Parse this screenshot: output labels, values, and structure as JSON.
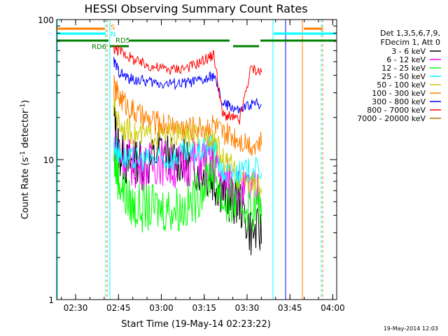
{
  "figure": {
    "title": "HESSI Observing Summary Count Rates",
    "xlabel": "Start Time (19-May-14 02:23:22)",
    "ylabel_main": "Count Rate (s",
    "ylabel_sup1": "-1",
    "ylabel_mid": " detector",
    "ylabel_sup2": "-1",
    "ylabel_end": ")",
    "timestamp": "19-May-2014 12:03"
  },
  "legend": {
    "header1": "Det 1,3,5,6,7,9,",
    "header2": "FDecim 1, Att 0"
  },
  "flags": {
    "S": "S",
    "N": "N",
    "RD6": "RD6",
    "RD5": "RD5"
  },
  "chart_data": {
    "type": "line",
    "title": "HESSI Observing Summary Count Rates",
    "xlabel": "Start Time (19-May-14 02:23:22)",
    "ylabel": "Count Rate (s^-1 detector^-1)",
    "yscale": "log",
    "xlim_minutes": [
      0,
      98
    ],
    "ylim": [
      1,
      100
    ],
    "x_ticks": [
      "02:30",
      "02:45",
      "03:00",
      "03:15",
      "03:30",
      "03:45",
      "04:00"
    ],
    "y_ticks": [
      "1",
      "10",
      "100"
    ],
    "x_minutes": [
      20,
      22,
      25,
      28,
      32,
      36,
      40,
      44,
      48,
      52,
      55,
      58,
      61,
      64,
      68,
      72
    ],
    "series": [
      {
        "name": "3 - 6 keV",
        "color": "#000000",
        "values": [
          20,
          11,
          9,
          10,
          9,
          12,
          10,
          10,
          9,
          8,
          7,
          6,
          5,
          5,
          3,
          3
        ]
      },
      {
        "name": "6 - 12 keV",
        "color": "#ff00ff",
        "values": [
          12,
          11,
          10,
          9,
          9,
          10,
          9,
          9,
          10,
          10,
          10,
          7,
          7,
          6,
          6,
          5.5
        ]
      },
      {
        "name": "12 - 25 keV",
        "color": "#00ff00",
        "values": [
          10,
          7,
          5,
          4.5,
          4.5,
          4.5,
          4.5,
          4.5,
          5,
          7,
          9,
          5,
          5,
          5,
          4.5,
          4.5
        ]
      },
      {
        "name": "25 - 50 keV",
        "color": "#00ffff",
        "values": [
          13,
          11,
          10,
          10,
          10,
          10,
          10,
          11,
          11,
          12,
          13,
          8,
          8,
          8,
          8.5,
          8.5
        ]
      },
      {
        "name": "50 - 100 keV",
        "color": "#cccc00",
        "values": [
          24,
          18,
          16,
          15,
          15,
          15,
          15,
          15,
          15,
          15,
          15,
          10,
          9,
          7,
          7,
          6
        ]
      },
      {
        "name": "100 - 300 keV",
        "color": "#ff8000",
        "values": [
          33,
          28,
          24,
          21,
          19,
          18,
          18,
          17,
          17,
          17,
          18,
          15,
          15,
          14,
          13,
          13
        ]
      },
      {
        "name": "300 - 800 keV",
        "color": "#0000ff",
        "values": [
          50,
          42,
          38,
          37,
          36,
          35,
          35,
          35,
          36,
          37,
          40,
          25,
          24,
          22,
          25,
          25
        ]
      },
      {
        "name": "800 - 7000 keV",
        "color": "#ff0000",
        "values": [
          62,
          60,
          55,
          50,
          47,
          45,
          44,
          45,
          47,
          52,
          56,
          21,
          20,
          19,
          45,
          42
        ]
      },
      {
        "name": "7000 - 20000 keV",
        "color": "#b07000",
        "values": []
      }
    ]
  }
}
